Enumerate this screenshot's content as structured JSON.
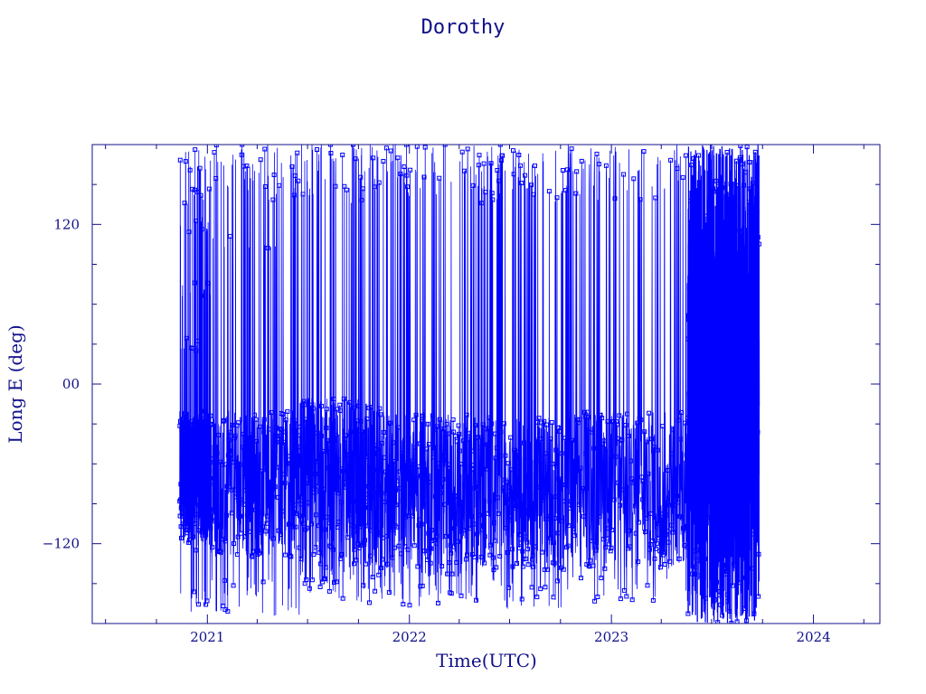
{
  "chart_data": {
    "type": "line",
    "title": "Dorothy",
    "xlabel": "Time(UTC)",
    "ylabel": "Long E (deg)",
    "x_tick_labels": [
      "2021",
      "2022",
      "2023",
      "2024"
    ],
    "y_tick_labels": [
      "−120",
      "00",
      "120"
    ],
    "y_tick_values": [
      -120,
      0,
      120
    ],
    "xlim": [
      "2020-06-07",
      "2024-04-30"
    ],
    "ylim": [
      -180,
      180
    ],
    "grid": false,
    "colors": {
      "axis": "#10108a",
      "series_line": "#0000ff",
      "series_marker": "#0000ff"
    },
    "series": [
      {
        "marker": "open-square",
        "x_range": [
          "2020-11-12",
          "2023-09-25"
        ],
        "y_range": [
          -180,
          180
        ],
        "clusters": [
          {
            "period": [
              "2020-11-12",
              "2021-01-07"
            ],
            "dense_band": [
              -118,
              -20
            ],
            "upper_points": [
              161,
              141,
              120,
              72,
              29,
              173
            ],
            "lower_points": [
              -167,
              -160,
              -120
            ]
          },
          {
            "period": [
              "2021-01-07",
              "2021-06-17"
            ],
            "dense_band": [
              -130,
              -20
            ],
            "upper_points": [
              153,
              177,
              168,
              144,
              108,
              165
            ],
            "lower_points": [
              -170,
              -155,
              -150
            ]
          },
          {
            "period": [
              "2021-06-17",
              "2021-11-09"
            ],
            "dense_band": [
              -140,
              -10
            ],
            "upper_points": [
              172,
              150,
              142,
              166,
              178
            ],
            "lower_points": [
              -160,
              -150,
              -145
            ]
          },
          {
            "period": [
              "2021-11-09",
              "2022-04-26"
            ],
            "dense_band": [
              -145,
              -20
            ],
            "upper_points": [
              163,
              146,
              170,
              158,
              176
            ],
            "lower_points": [
              -162,
              -155
            ]
          },
          {
            "period": [
              "2022-04-26",
              "2022-10-04"
            ],
            "dense_band": [
              -140,
              -25
            ],
            "upper_points": [
              162,
              142,
              170,
              152,
              177,
              146
            ],
            "lower_points": [
              -165,
              -150
            ]
          },
          {
            "period": [
              "2022-10-04",
              "2023-05-18"
            ],
            "dense_band": [
              -140,
              -20
            ],
            "upper_points": [
              158,
              144,
              171,
              163,
              148,
              176
            ],
            "lower_points": [
              -160,
              -158,
              -150
            ]
          },
          {
            "period": [
              "2023-05-18",
              "2023-07-17"
            ],
            "dense_band": [
              -180,
              180
            ],
            "upper_points": [],
            "lower_points": []
          },
          {
            "period": [
              "2023-07-17",
              "2023-09-25"
            ],
            "dense_band": [
              -180,
              180
            ],
            "upper_points": [
              150,
              60,
              40
            ],
            "lower_points": [
              -110,
              -90
            ]
          }
        ]
      }
    ]
  }
}
